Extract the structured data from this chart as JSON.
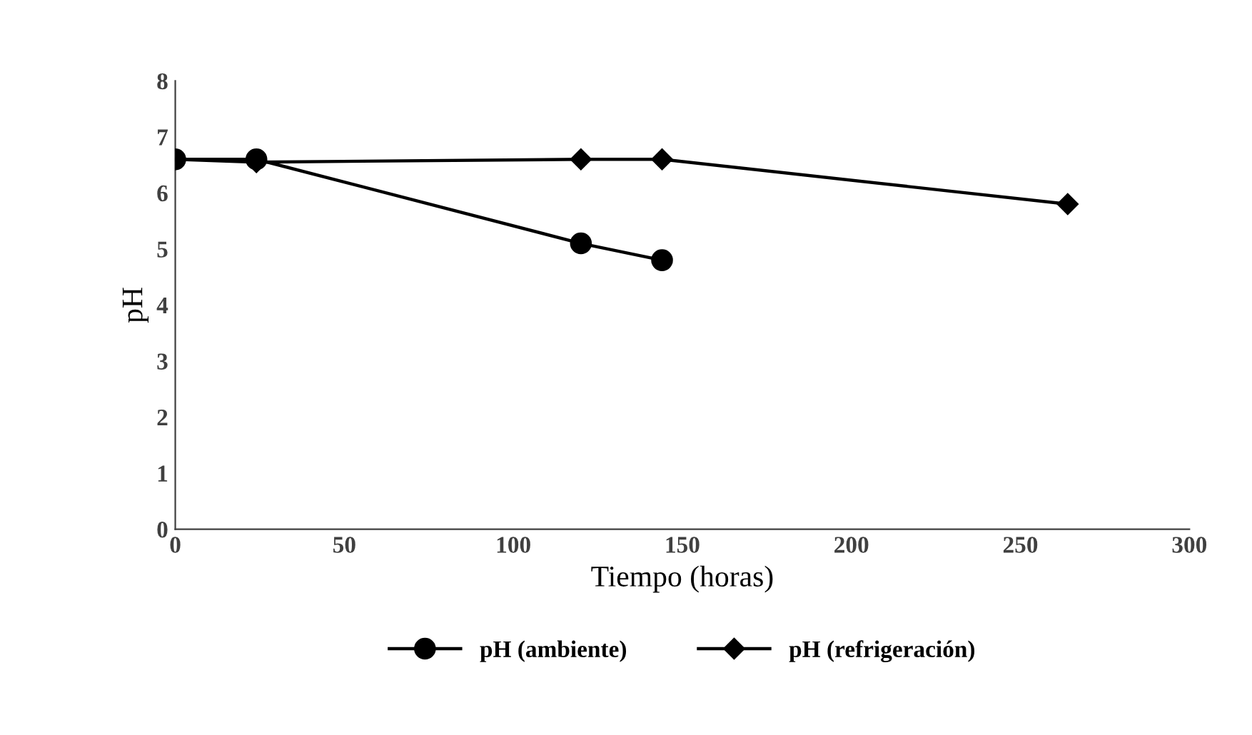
{
  "chart_data": {
    "type": "line",
    "xlabel": "Tiempo (horas)",
    "ylabel": "pH",
    "xlim": [
      0,
      300
    ],
    "xticks": [
      0,
      50,
      100,
      150,
      200,
      250,
      300
    ],
    "ylim": [
      0,
      8
    ],
    "yticks": [
      0,
      1,
      2,
      3,
      4,
      5,
      6,
      7,
      8
    ],
    "grid": false,
    "legend": "bottom",
    "series": [
      {
        "name": "pH (ambiente)",
        "color": "#000000",
        "marker": "circle",
        "x": [
          0,
          24,
          120,
          144
        ],
        "values": [
          6.6,
          6.6,
          5.1,
          4.8
        ]
      },
      {
        "name": "pH (refrigeración)",
        "color": "#000000",
        "marker": "diamond",
        "x": [
          0,
          24,
          120,
          144,
          264
        ],
        "values": [
          6.6,
          6.55,
          6.6,
          6.6,
          5.8
        ]
      }
    ]
  }
}
